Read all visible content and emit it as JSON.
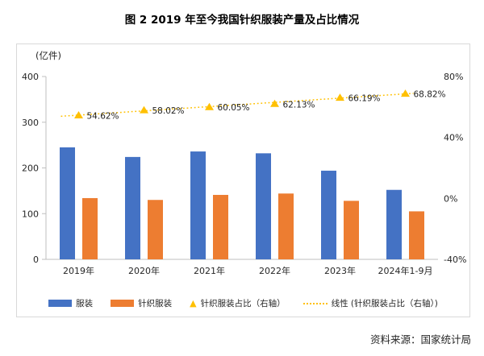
{
  "page": {
    "title": "图 2  2019 年至今我国针织服装产量及占比情况",
    "source": "资料来源：国家统计局"
  },
  "chart_data": {
    "type": "combo-bar-line",
    "categories": [
      "2019年",
      "2020年",
      "2021年",
      "2022年",
      "2023年",
      "2024年1-9月"
    ],
    "series": [
      {
        "name": "服装",
        "type": "bar",
        "axis": "left",
        "color": "#4472C4",
        "values": [
          245,
          224,
          236,
          232,
          194,
          152
        ]
      },
      {
        "name": "针织服装",
        "type": "bar",
        "axis": "left",
        "color": "#ED7D31",
        "values": [
          134,
          130,
          141,
          144,
          128,
          105
        ]
      },
      {
        "name": "针织服装占比（右轴）",
        "type": "scatter-triangle",
        "axis": "right",
        "color": "#FFC000",
        "values": [
          54.62,
          58.02,
          60.05,
          62.13,
          66.19,
          68.82
        ],
        "labels": [
          "54.62%",
          "58.02%",
          "60.05%",
          "62.13%",
          "66.19%",
          "68.82%"
        ]
      },
      {
        "name": "线性 (针织服装占比（右轴）)",
        "type": "trendline-dotted",
        "axis": "right",
        "color": "#FFC000"
      }
    ],
    "left_axis": {
      "label": "(亿件)",
      "ticks": [
        "0",
        "100",
        "200",
        "300",
        "400"
      ],
      "min": 0,
      "max": 400
    },
    "right_axis": {
      "ticks": [
        "-40%",
        "0%",
        "40%",
        "80%"
      ],
      "min": -40,
      "max": 80
    },
    "grid": false,
    "legend_position": "bottom",
    "colors": {
      "axis_line": "#BFBFBF",
      "frame_border": "#D9D9D9",
      "text": "#262626"
    }
  }
}
